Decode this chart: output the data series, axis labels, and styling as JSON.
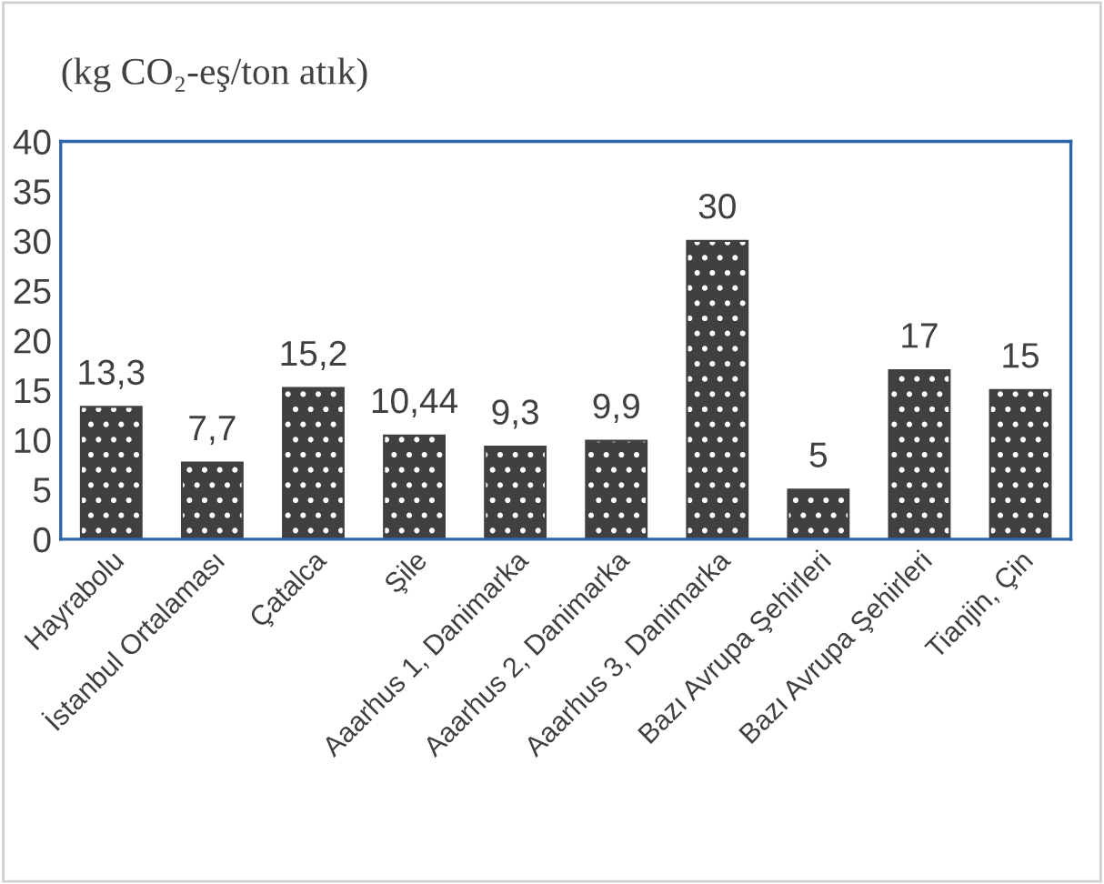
{
  "chart_data": {
    "type": "bar",
    "title": "(kg CO₂-eş/ton atık)",
    "categories": [
      "Hayrabolu",
      "İstanbul Ortalaması",
      "Çatalca",
      "Şile",
      "Aaarhus 1, Danimarka",
      "Aaarhus 2, Danimarka",
      "Aaarhus 3, Danimarka",
      "Bazı Avrupa Şehirleri",
      "Bazı Avrupa Şehirleri",
      "Tianjin, Çin"
    ],
    "values": [
      13.3,
      7.7,
      15.2,
      10.44,
      9.3,
      9.9,
      30,
      5,
      17,
      15
    ],
    "value_labels": [
      "13,3",
      "7,7",
      "15,2",
      "10,44",
      "9,3",
      "9,9",
      "30",
      "5",
      "17",
      "15"
    ],
    "color": "#404040",
    "ylim": [
      0,
      40
    ],
    "yticks": [
      0,
      5,
      10,
      15,
      20,
      25,
      30,
      35,
      40
    ],
    "grid": false,
    "legend": false
  }
}
